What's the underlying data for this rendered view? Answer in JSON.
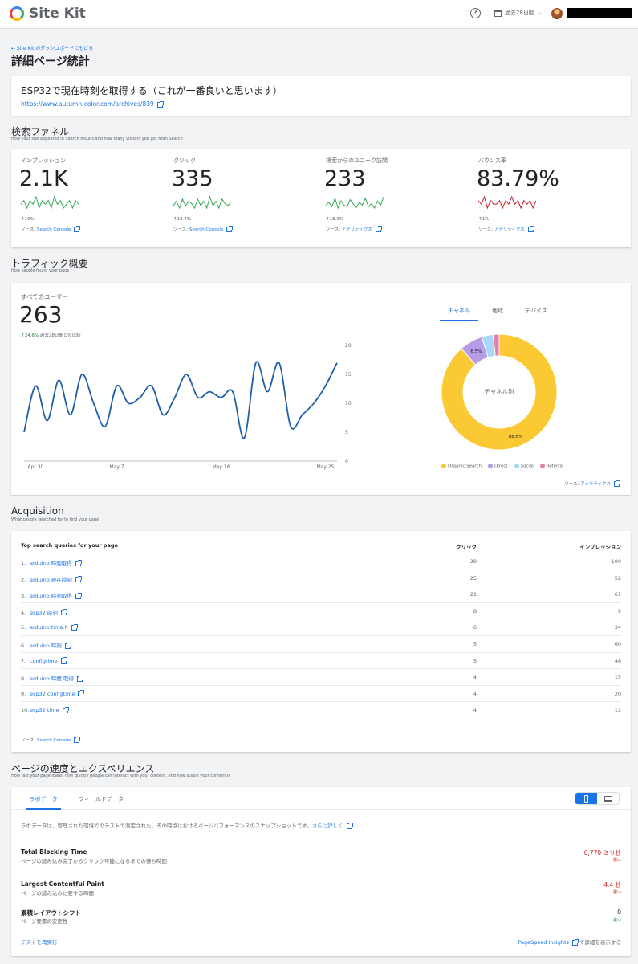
{
  "header": {
    "app_name": "Site Kit",
    "help_icon": "?",
    "date_range": "過去28日間",
    "date_caret": "⌄"
  },
  "back_link": "← Site Kit のダッシュボードにもどる",
  "page_title": "詳細ページ統計",
  "post": {
    "title": "ESP32で現在時刻を取得する（これが一番良いと思います）",
    "url": "https://www.autumn-color.com/archives/839"
  },
  "funnel": {
    "title": "検索ファネル",
    "subtitle": "How your site appeared in Search results and how many visitors you got from Search",
    "source_prefix": "ソース: ",
    "metrics": [
      {
        "label": "インプレッション",
        "value": "2.1K",
        "change": "↑10%",
        "source": "Search Console",
        "spark_color": "#34a853",
        "spark": [
          5,
          6,
          4,
          6,
          5,
          7,
          4,
          6,
          5,
          6,
          4,
          7,
          5,
          6,
          4,
          5,
          6,
          4,
          6,
          5
        ]
      },
      {
        "label": "クリック",
        "value": "335",
        "change": "↑18.4%",
        "source": "Search Console",
        "spark_color": "#34a853",
        "spark": [
          4,
          6,
          3,
          7,
          4,
          6,
          5,
          3,
          7,
          4,
          6,
          3,
          8,
          4,
          6,
          3,
          7,
          5,
          4,
          6
        ]
      },
      {
        "label": "検索からのユニーク訪問",
        "value": "233",
        "change": "↑18.9%",
        "source": "アナリティクス",
        "spark_color": "#34a853",
        "spark": [
          4,
          6,
          3,
          9,
          2,
          7,
          4,
          3,
          8,
          5,
          2,
          6,
          4,
          9,
          3,
          5,
          2,
          7,
          4,
          10
        ]
      },
      {
        "label": "バウンス率",
        "value": "83.79%",
        "change": "↑1%",
        "source": "アナリティクス",
        "spark_color": "#c5221f",
        "spark": [
          6,
          5,
          7,
          4,
          6,
          5,
          5,
          6,
          4,
          6,
          5,
          7,
          5,
          6,
          4,
          6,
          5,
          6,
          4,
          6
        ]
      }
    ]
  },
  "traffic": {
    "title": "トラフィック概要",
    "subtitle": "How people found your page",
    "all_users_label": "すべてのユーザー",
    "all_users_value": "263",
    "change_up": "↑24.6%",
    "change_text": "過去28日間との比較",
    "tabs": [
      "チャネル",
      "地域",
      "デバイス"
    ],
    "active_tab": 0,
    "source_prefix": "ソース: ",
    "source": "アナリティクス"
  },
  "chart_data": [
    {
      "type": "line",
      "x": [
        "Apr 29",
        "Apr 30",
        "May 1",
        "May 2",
        "May 3",
        "May 4",
        "May 5",
        "May 6",
        "May 7",
        "May 8",
        "May 9",
        "May 10",
        "May 11",
        "May 12",
        "May 13",
        "May 14",
        "May 15",
        "May 16",
        "May 17",
        "May 18",
        "May 19",
        "May 20",
        "May 21",
        "May 22",
        "May 23",
        "May 24",
        "May 25",
        "May 26"
      ],
      "x_tick_labels": [
        "Apr 30",
        "May 7",
        "May 16",
        "May 25"
      ],
      "series": [
        {
          "values": [
            5,
            13,
            7,
            14,
            8,
            15,
            10,
            6,
            13,
            10,
            11,
            13,
            8,
            11,
            15,
            11,
            12,
            11,
            12,
            4,
            17,
            12,
            17,
            6,
            8,
            10,
            13,
            17
          ]
        }
      ],
      "ylim": [
        0,
        20
      ],
      "yticks": [
        0,
        5,
        10,
        15,
        20
      ],
      "grid": false
    },
    {
      "type": "pie",
      "center_label": "チャネル別",
      "labels": [
        "Organic Search",
        "Direct",
        "Social",
        "Referral"
      ],
      "values": [
        88.6,
        6.5,
        3.2,
        1.7
      ],
      "data_labels": [
        "88.6%",
        "6.5%",
        "",
        ""
      ],
      "colors": [
        "#fbc933",
        "#b79ce8",
        "#a8d8f8",
        "#e87ea8"
      ],
      "legend": "bottom"
    }
  ],
  "acquisition": {
    "title": "Acquisition",
    "subtitle": "What people searched for to find your page",
    "col_query": "Top search queries for your page",
    "col_clicks": "クリック",
    "col_impressions": "インプレッション",
    "rows": [
      {
        "num": "1.",
        "query": "arduino 時間取得",
        "clicks": "29",
        "impressions": "100"
      },
      {
        "num": "2.",
        "query": "arduino 現在時刻",
        "clicks": "25",
        "impressions": "52"
      },
      {
        "num": "3.",
        "query": "arduino 時刻取得",
        "clicks": "21",
        "impressions": "61"
      },
      {
        "num": "4.",
        "query": "esp32 時刻",
        "clicks": "8",
        "impressions": "9"
      },
      {
        "num": "5.",
        "query": "arduino time.h",
        "clicks": "6",
        "impressions": "34"
      },
      {
        "num": "6.",
        "query": "arduino 時刻",
        "clicks": "5",
        "impressions": "60"
      },
      {
        "num": "7.",
        "query": "configtime",
        "clicks": "5",
        "impressions": "46"
      },
      {
        "num": "8.",
        "query": "arduino 時間 取得",
        "clicks": "4",
        "impressions": "15"
      },
      {
        "num": "9.",
        "query": "esp32 configtime",
        "clicks": "4",
        "impressions": "20"
      },
      {
        "num": "10.",
        "query": "esp32 time",
        "clicks": "4",
        "impressions": "11"
      }
    ],
    "source_prefix": "ソース: ",
    "source": "Search Console"
  },
  "speed": {
    "title": "ページの速度とエクスペリエンス",
    "subtitle": "How fast your page loads, how quickly people can interact with your content, and how stable your content is",
    "tabs": [
      "ラボデータ",
      "フィールドデータ"
    ],
    "active_tab": 0,
    "device_active": "mobile",
    "description": "ラボデータは、管理された環境でのテストで測定された、その時点におけるページパフォーマンスのスナップショットです。",
    "learn_more": "さらに詳しく",
    "metrics": [
      {
        "title": "Total Blocking Time",
        "sub": "ページの読み込み完了からクリック可能になるまでの待ち時間",
        "value": "6,770 ミリ秒",
        "rating": "悪い",
        "status": "bad"
      },
      {
        "title": "Largest Contentful Paint",
        "sub": "ページの読み込みに要する時間",
        "value": "4.4 秒",
        "rating": "悪い",
        "status": "bad"
      },
      {
        "title": "累積レイアウトシフト",
        "sub": "ページ要素の安定性",
        "value": "0",
        "rating": "良い",
        "status": "good"
      }
    ],
    "rerun": "テストを再実行",
    "psi_link": "PageSpeed Insights",
    "psi_suffix": "で詳細を表示する"
  }
}
